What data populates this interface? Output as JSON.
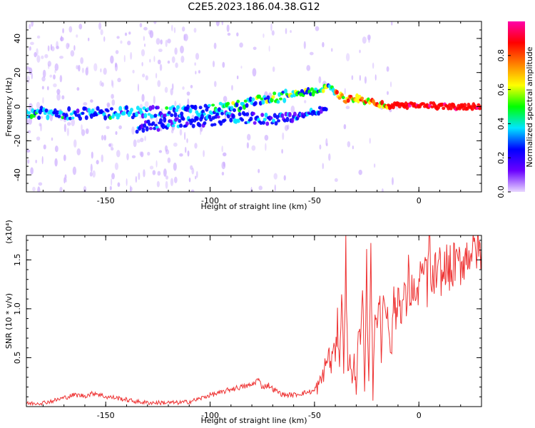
{
  "title": "C2E5.2023.186.04.38.G12",
  "chart_data": [
    {
      "type": "heatmap",
      "description_role": "spectrogram",
      "xlabel": "Height of straight line (km)",
      "ylabel": "Frequency (Hz)",
      "xlim": [
        -188,
        30
      ],
      "ylim": [
        -50,
        50
      ],
      "x_ticks": [
        -150,
        -100,
        -50,
        0
      ],
      "x_tick_labels": [
        "-150",
        "-100",
        "-50",
        "0"
      ],
      "y_ticks": [
        -40,
        -20,
        0,
        20,
        40
      ],
      "y_tick_labels": [
        "-40",
        "-20",
        "0",
        "20",
        "40"
      ],
      "colorbar": {
        "label": "Normalized spectral amplitude",
        "range": [
          0,
          1
        ],
        "ticks": [
          0.0,
          0.2,
          0.4,
          0.6,
          0.8
        ],
        "tick_labels": [
          "0.0",
          "0.2",
          "0.4",
          "0.6",
          "0.8"
        ],
        "colormap": [
          "#e8d8ff",
          "#6a00ff",
          "#0000ff",
          "#00e5ff",
          "#00ff00",
          "#ffff00",
          "#ff8000",
          "#ff0000",
          "#ff00aa"
        ]
      },
      "ridges": [
        {
          "name": "main",
          "points": [
            [
              -188,
              -4
            ],
            [
              -170,
              -4
            ],
            [
              -150,
              -4
            ],
            [
              -130,
              -3
            ],
            [
              -115,
              -3
            ],
            [
              -100,
              -2
            ],
            [
              -90,
              0
            ],
            [
              -80,
              2
            ],
            [
              -70,
              5
            ],
            [
              -60,
              7
            ],
            [
              -50,
              9
            ],
            [
              -42,
              12
            ],
            [
              -40,
              8
            ],
            [
              -35,
              4
            ],
            [
              -30,
              5
            ],
            [
              -25,
              3
            ],
            [
              -20,
              2
            ],
            [
              -15,
              0
            ],
            [
              -10,
              1
            ],
            [
              -5,
              1
            ],
            [
              0,
              0
            ],
            [
              5,
              1
            ],
            [
              10,
              0
            ],
            [
              20,
              0
            ],
            [
              30,
              0
            ]
          ]
        },
        {
          "name": "lower",
          "points": [
            [
              -135,
              -12
            ],
            [
              -120,
              -10
            ],
            [
              -110,
              -9
            ],
            [
              -100,
              -8
            ],
            [
              -90,
              -6
            ],
            [
              -70,
              -8
            ],
            [
              -60,
              -6
            ],
            [
              -50,
              -3
            ],
            [
              -44,
              -1
            ]
          ]
        }
      ]
    },
    {
      "type": "line",
      "xlabel": "Height of straight line (km)",
      "ylabel": "SNR (10 * v/v)",
      "y_multiplier_label": "(x10⁴)",
      "xlim": [
        -188,
        30
      ],
      "ylim": [
        0,
        1.75
      ],
      "x_ticks": [
        -150,
        -100,
        -50,
        0
      ],
      "x_tick_labels": [
        "-150",
        "-100",
        "-50",
        "0"
      ],
      "y_ticks": [
        0.5,
        1.0,
        1.5
      ],
      "y_tick_labels": [
        "0.5",
        "1.0",
        "1.5"
      ],
      "line_color": "#ee3333",
      "x": [
        -188,
        -180,
        -175,
        -170,
        -165,
        -160,
        -155,
        -150,
        -145,
        -140,
        -135,
        -130,
        -125,
        -120,
        -115,
        -110,
        -105,
        -100,
        -95,
        -90,
        -85,
        -80,
        -77,
        -75,
        -72,
        -70,
        -65,
        -60,
        -55,
        -50,
        -47,
        -45,
        -43,
        -42,
        -41,
        -40,
        -39,
        -38,
        -37,
        -36,
        -35,
        -34,
        -33,
        -32,
        -31,
        -30,
        -29,
        -28,
        -27,
        -26,
        -25,
        -24,
        -23,
        -22,
        -21,
        -20,
        -19,
        -18,
        -17,
        -16,
        -15,
        -14,
        -13,
        -12,
        -11,
        -10,
        -9,
        -8,
        -7,
        -6,
        -5,
        -4,
        -3,
        -2,
        -1,
        0,
        1,
        2,
        3,
        4,
        5,
        6,
        7,
        8,
        9,
        10,
        11,
        12,
        13,
        14,
        15,
        16,
        17,
        18,
        19,
        20,
        21,
        22,
        23,
        24,
        25,
        26,
        27,
        28,
        29,
        30
      ],
      "y": [
        0.03,
        0.04,
        0.06,
        0.09,
        0.12,
        0.11,
        0.14,
        0.1,
        0.09,
        0.07,
        0.05,
        0.04,
        0.04,
        0.04,
        0.04,
        0.05,
        0.08,
        0.12,
        0.14,
        0.18,
        0.2,
        0.22,
        0.28,
        0.2,
        0.22,
        0.18,
        0.12,
        0.12,
        0.14,
        0.16,
        0.25,
        0.4,
        0.55,
        0.35,
        0.7,
        0.45,
        0.85,
        0.5,
        1.1,
        0.45,
        1.55,
        0.3,
        0.6,
        0.2,
        0.45,
        0.15,
        0.9,
        0.55,
        1.2,
        0.1,
        1.4,
        0.2,
        1.75,
        0.05,
        1.1,
        0.8,
        1.25,
        0.4,
        1.3,
        0.9,
        1.0,
        0.75,
        0.55,
        1.25,
        0.8,
        1.2,
        1.05,
        1.0,
        1.2,
        1.0,
        1.35,
        1.1,
        1.25,
        1.15,
        1.05,
        1.3,
        1.4,
        1.2,
        1.55,
        1.2,
        1.75,
        1.15,
        1.3,
        1.4,
        1.25,
        1.45,
        1.3,
        1.35,
        1.5,
        1.35,
        1.42,
        1.3,
        1.55,
        1.4,
        1.48,
        1.45,
        1.5,
        1.52,
        1.55,
        1.58,
        1.62,
        1.55,
        1.6,
        1.63,
        1.58,
        1.6
      ]
    }
  ]
}
